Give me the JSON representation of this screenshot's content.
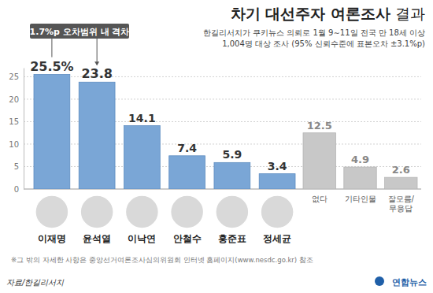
{
  "chart_data": {
    "type": "bar",
    "title": "차기 대선주자 여론조사 결과",
    "subtitle": [
      "한길리서치가 쿠키뉴스 의뢰로 1월 9∼11일 전국 만 18세 이상",
      "1,004명 대상 조사 (95% 신뢰수준에 표본오차 ±3.1%p)"
    ],
    "annotation": "1.7%p 오차범위 내 격차",
    "categories": [
      "이재명",
      "윤석열",
      "이낙연",
      "안철수",
      "홍준표",
      "정세균",
      "없다",
      "기타인물",
      "잘모름/무응답"
    ],
    "values": [
      25.5,
      23.8,
      14.1,
      7.4,
      5.9,
      3.4,
      12.5,
      4.9,
      2.6
    ],
    "value_labels": [
      "25.5%",
      "23.8",
      "14.1",
      "7.4",
      "5.9",
      "3.4",
      "12.5",
      "4.9",
      "2.6"
    ],
    "colors": [
      "#7aa6d6",
      "#7aa6d6",
      "#7aa6d6",
      "#7aa6d6",
      "#7aa6d6",
      "#7aa6d6",
      "#c8c8c8",
      "#c8c8c8",
      "#c8c8c8"
    ],
    "ylim": [
      0,
      27
    ],
    "yticks": [
      0,
      5,
      10,
      15,
      20,
      25
    ],
    "grid": true,
    "data_labels": true,
    "note": "※그 밖의 자세한 사항은 중앙선거여론조사심의위원회 인터넷 홈페이지(www.nesdc.go.kr) 참조",
    "source": "자료/한길리서치",
    "logo": "연합뉴스"
  }
}
